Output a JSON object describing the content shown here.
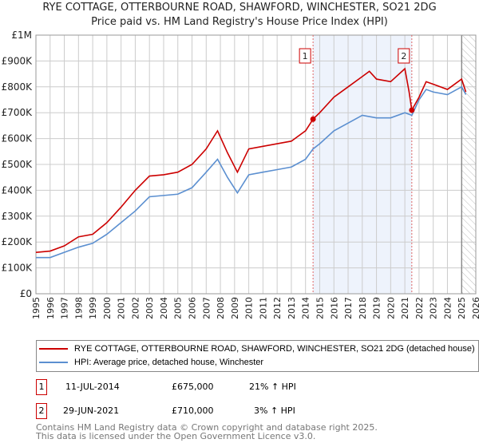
{
  "chart_data": {
    "type": "line",
    "title": "RYE COTTAGE, OTTERBOURNE ROAD, SHAWFORD, WINCHESTER, SO21 2DG",
    "subtitle": "Price paid vs. HM Land Registry's House Price Index (HPI)",
    "xlim": [
      1995,
      2026
    ],
    "ylim": [
      0,
      1000000
    ],
    "x_ticks": [
      "1995",
      "1996",
      "1997",
      "1998",
      "1999",
      "2000",
      "2001",
      "2002",
      "2003",
      "2004",
      "2005",
      "2006",
      "2007",
      "2008",
      "2009",
      "2010",
      "2011",
      "2012",
      "2013",
      "2014",
      "2015",
      "2016",
      "2017",
      "2018",
      "2019",
      "2020",
      "2021",
      "2022",
      "2023",
      "2024",
      "2025",
      "2026"
    ],
    "y_ticks": [
      {
        "v": 0,
        "label": "£0"
      },
      {
        "v": 100000,
        "label": "£100K"
      },
      {
        "v": 200000,
        "label": "£200K"
      },
      {
        "v": 300000,
        "label": "£300K"
      },
      {
        "v": 400000,
        "label": "£400K"
      },
      {
        "v": 500000,
        "label": "£500K"
      },
      {
        "v": 600000,
        "label": "£600K"
      },
      {
        "v": 700000,
        "label": "£700K"
      },
      {
        "v": 800000,
        "label": "£800K"
      },
      {
        "v": 900000,
        "label": "£900K"
      },
      {
        "v": 1000000,
        "label": "£1M"
      }
    ],
    "grid": true,
    "shaded_range": [
      2014.53,
      2021.49
    ],
    "forecast_hatch_from": 2025.0,
    "series": [
      {
        "name": "RYE COTTAGE, OTTERBOURNE ROAD, SHAWFORD, WINCHESTER, SO21 2DG (detached house)",
        "color": "#cc0000",
        "x": [
          1995,
          1996,
          1997,
          1998,
          1999,
          2000,
          2001,
          2002,
          2003,
          2004,
          2005,
          2006,
          2007,
          2007.8,
          2008.5,
          2009.2,
          2010,
          2011,
          2012,
          2013,
          2014,
          2014.53,
          2015,
          2016,
          2017,
          2018,
          2018.5,
          2019,
          2020,
          2021,
          2021.3,
          2021.49,
          2022,
          2022.5,
          2023,
          2024,
          2025,
          2025.3
        ],
        "y": [
          160000,
          165000,
          185000,
          220000,
          230000,
          275000,
          335000,
          400000,
          455000,
          460000,
          470000,
          500000,
          560000,
          630000,
          545000,
          470000,
          560000,
          570000,
          580000,
          590000,
          630000,
          675000,
          700000,
          760000,
          800000,
          840000,
          860000,
          830000,
          820000,
          870000,
          780000,
          710000,
          760000,
          820000,
          810000,
          790000,
          830000,
          780000
        ]
      },
      {
        "name": "HPI: Average price, detached house, Winchester",
        "color": "#5b8fd0",
        "x": [
          1995,
          1996,
          1997,
          1998,
          1999,
          2000,
          2001,
          2002,
          2003,
          2004,
          2005,
          2006,
          2007,
          2007.8,
          2008.5,
          2009.2,
          2010,
          2011,
          2012,
          2013,
          2014,
          2014.53,
          2015,
          2016,
          2017,
          2018,
          2019,
          2020,
          2021,
          2021.49,
          2022,
          2022.5,
          2023,
          2024,
          2025,
          2025.3
        ],
        "y": [
          140000,
          140000,
          160000,
          180000,
          195000,
          230000,
          275000,
          320000,
          375000,
          380000,
          385000,
          410000,
          470000,
          520000,
          450000,
          390000,
          460000,
          470000,
          480000,
          490000,
          520000,
          560000,
          580000,
          630000,
          660000,
          690000,
          680000,
          680000,
          700000,
          690000,
          750000,
          790000,
          780000,
          770000,
          800000,
          770000
        ]
      }
    ],
    "annotations": [
      {
        "label": "1",
        "x": 2014.53,
        "y": 675000
      },
      {
        "label": "2",
        "x": 2021.49,
        "y": 710000
      }
    ]
  },
  "legend": [
    "RYE COTTAGE, OTTERBOURNE ROAD, SHAWFORD, WINCHESTER, SO21 2DG (detached house)",
    "HPI: Average price, detached house, Winchester"
  ],
  "transactions": [
    {
      "num": "1",
      "date": "11-JUL-2014",
      "price": "£675,000",
      "hpi": "21% ↑ HPI"
    },
    {
      "num": "2",
      "date": "29-JUN-2021",
      "price": "£710,000",
      "hpi": "3% ↑ HPI"
    }
  ],
  "footer": [
    "Contains HM Land Registry data © Crown copyright and database right 2025.",
    "This data is licensed under the Open Government Licence v3.0."
  ]
}
